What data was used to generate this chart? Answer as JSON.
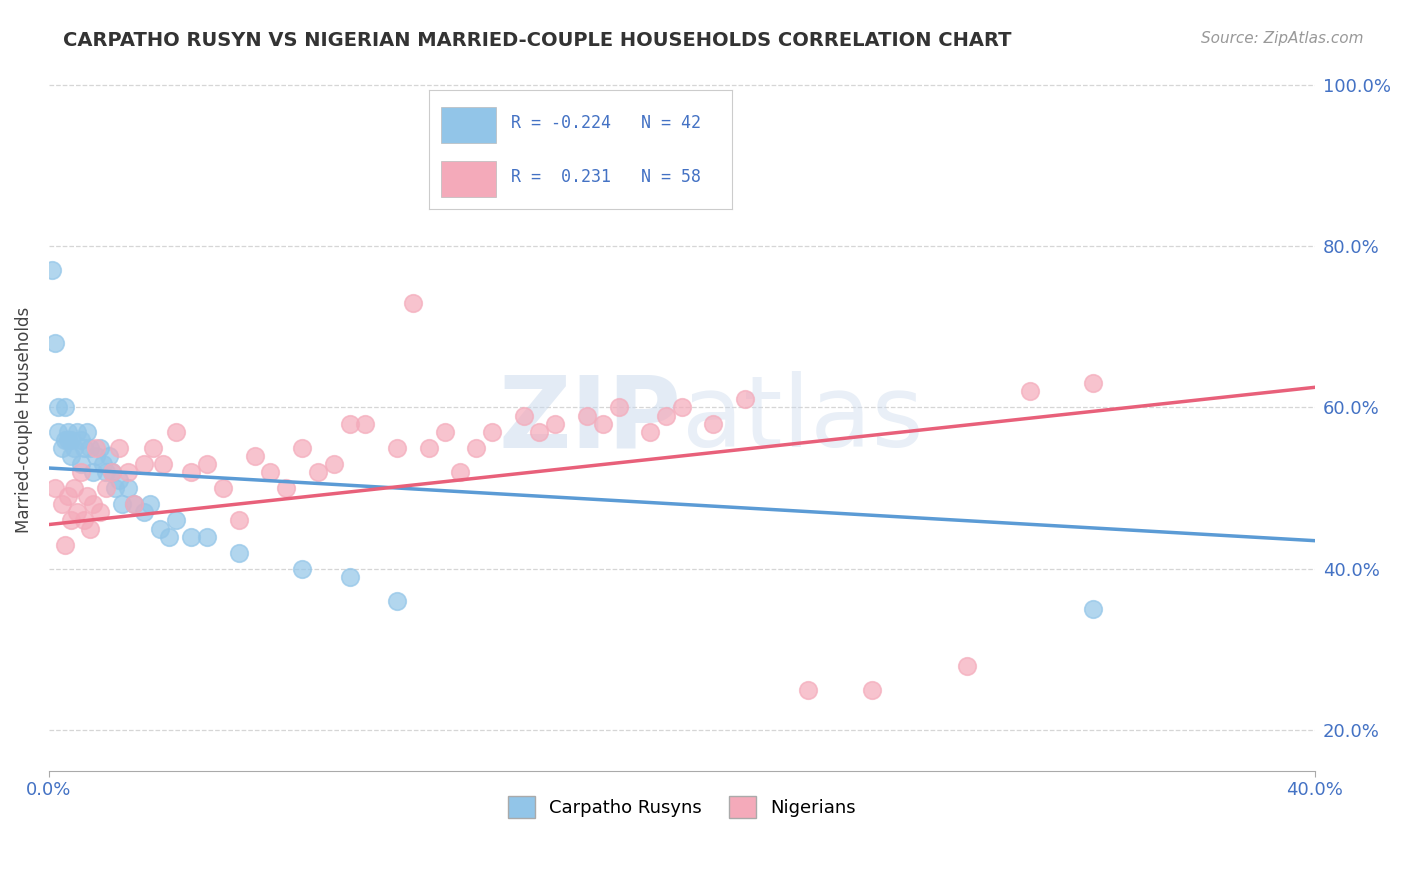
{
  "title": "CARPATHO RUSYN VS NIGERIAN MARRIED-COUPLE HOUSEHOLDS CORRELATION CHART",
  "source": "Source: ZipAtlas.com",
  "ylabel": "Married-couple Households",
  "xmin": 0.0,
  "xmax": 0.4,
  "ymin": 0.15,
  "ymax": 1.02,
  "ytick_positions": [
    0.2,
    0.4,
    0.6,
    0.8,
    1.0
  ],
  "ytick_labels": [
    "20.0%",
    "40.0%",
    "60.0%",
    "80.0%",
    "100.0%"
  ],
  "xtick_positions": [
    0.0,
    0.4
  ],
  "xtick_labels": [
    "0.0%",
    "40.0%"
  ],
  "blue_color": "#92C5E8",
  "pink_color": "#F4AABA",
  "blue_line_color": "#5B9BD5",
  "pink_line_color": "#E8607A",
  "r_blue": -0.224,
  "n_blue": 42,
  "r_pink": 0.231,
  "n_pink": 58,
  "legend_label_blue": "Carpatho Rusyns",
  "legend_label_pink": "Nigerians",
  "watermark_zip": "ZIP",
  "watermark_atlas": "atlas",
  "blue_trend_x": [
    0.0,
    0.4
  ],
  "blue_trend_y": [
    0.525,
    0.435
  ],
  "pink_trend_x": [
    0.0,
    0.4
  ],
  "pink_trend_y": [
    0.455,
    0.625
  ],
  "blue_scatter_x": [
    0.001,
    0.002,
    0.003,
    0.003,
    0.004,
    0.005,
    0.005,
    0.006,
    0.006,
    0.007,
    0.007,
    0.008,
    0.009,
    0.01,
    0.01,
    0.011,
    0.012,
    0.013,
    0.014,
    0.015,
    0.016,
    0.017,
    0.018,
    0.019,
    0.02,
    0.021,
    0.022,
    0.023,
    0.025,
    0.027,
    0.03,
    0.032,
    0.035,
    0.038,
    0.04,
    0.045,
    0.05,
    0.06,
    0.08,
    0.095,
    0.11,
    0.33
  ],
  "blue_scatter_y": [
    0.77,
    0.68,
    0.6,
    0.57,
    0.55,
    0.6,
    0.56,
    0.57,
    0.56,
    0.56,
    0.54,
    0.55,
    0.57,
    0.56,
    0.53,
    0.55,
    0.57,
    0.55,
    0.52,
    0.54,
    0.55,
    0.53,
    0.52,
    0.54,
    0.52,
    0.5,
    0.51,
    0.48,
    0.5,
    0.48,
    0.47,
    0.48,
    0.45,
    0.44,
    0.46,
    0.44,
    0.44,
    0.42,
    0.4,
    0.39,
    0.36,
    0.35
  ],
  "pink_scatter_x": [
    0.002,
    0.004,
    0.005,
    0.006,
    0.007,
    0.008,
    0.009,
    0.01,
    0.011,
    0.012,
    0.013,
    0.014,
    0.015,
    0.016,
    0.018,
    0.02,
    0.022,
    0.025,
    0.027,
    0.03,
    0.033,
    0.036,
    0.04,
    0.045,
    0.05,
    0.055,
    0.06,
    0.065,
    0.07,
    0.075,
    0.08,
    0.085,
    0.09,
    0.095,
    0.1,
    0.11,
    0.115,
    0.12,
    0.125,
    0.13,
    0.135,
    0.14,
    0.15,
    0.155,
    0.16,
    0.17,
    0.175,
    0.18,
    0.19,
    0.195,
    0.2,
    0.21,
    0.22,
    0.24,
    0.26,
    0.29,
    0.31,
    0.33
  ],
  "pink_scatter_y": [
    0.5,
    0.48,
    0.43,
    0.49,
    0.46,
    0.5,
    0.47,
    0.52,
    0.46,
    0.49,
    0.45,
    0.48,
    0.55,
    0.47,
    0.5,
    0.52,
    0.55,
    0.52,
    0.48,
    0.53,
    0.55,
    0.53,
    0.57,
    0.52,
    0.53,
    0.5,
    0.46,
    0.54,
    0.52,
    0.5,
    0.55,
    0.52,
    0.53,
    0.58,
    0.58,
    0.55,
    0.73,
    0.55,
    0.57,
    0.52,
    0.55,
    0.57,
    0.59,
    0.57,
    0.58,
    0.59,
    0.58,
    0.6,
    0.57,
    0.59,
    0.6,
    0.58,
    0.61,
    0.25,
    0.25,
    0.28,
    0.62,
    0.63
  ]
}
